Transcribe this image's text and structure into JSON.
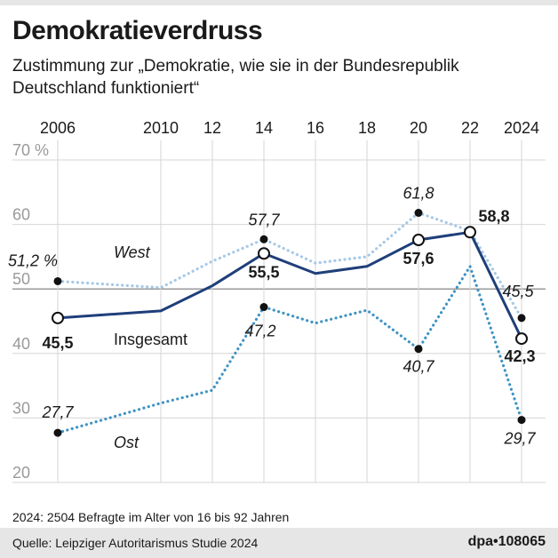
{
  "header": {
    "title": "Demokratieverdruss",
    "subtitle": "Zustimmung zur „Demokratie, wie sie in der Bundesrepublik Deutschland funktioniert“"
  },
  "chart_data": {
    "type": "line",
    "title": "Demokratieverdruss",
    "subtitle": "Zustimmung zur „Demokratie, wie sie in der Bundesrepublik Deutschland funktioniert“",
    "x": [
      2006,
      2010,
      2012,
      2014,
      2016,
      2018,
      2020,
      2022,
      2024
    ],
    "x_tick_labels": [
      "2006",
      "2010",
      "12",
      "14",
      "16",
      "18",
      "20",
      "22",
      "2024"
    ],
    "y_tick_labels": [
      "70 %",
      "60",
      "50",
      "40",
      "30",
      "20"
    ],
    "ylim": [
      20,
      70
    ],
    "y_ticks": [
      70,
      60,
      50,
      40,
      30,
      20
    ],
    "grid": true,
    "series": [
      {
        "name": "West",
        "style": "dotted",
        "color": "#a6c8e6",
        "values": [
          51.2,
          50.2,
          54.3,
          57.7,
          54.0,
          55.0,
          61.8,
          59.0,
          45.5
        ],
        "labels": [
          "51,2 %",
          null,
          null,
          "57,7",
          null,
          null,
          "61,8",
          null,
          "45,5"
        ]
      },
      {
        "name": "Insgesamt",
        "style": "solid",
        "color": "#1f3f7a",
        "values": [
          45.5,
          46.6,
          50.5,
          55.5,
          52.4,
          53.5,
          57.6,
          58.8,
          42.3
        ],
        "labels": [
          "45,5",
          null,
          null,
          "55,5",
          null,
          null,
          "57,6",
          "58,8",
          "42,3"
        ]
      },
      {
        "name": "Ost",
        "style": "dotted",
        "color": "#3e93c4",
        "values": [
          27.7,
          32.3,
          34.3,
          47.2,
          44.7,
          46.7,
          40.7,
          53.5,
          29.7
        ],
        "labels": [
          "27,7",
          null,
          null,
          "47,2",
          null,
          null,
          "40,7",
          null,
          "29,7"
        ]
      }
    ],
    "series_labels": {
      "west": "West",
      "total": "Insgesamt",
      "east": "Ost"
    }
  },
  "note": "2024: 2504 Befragte im Alter von 16 bis 92 Jahren",
  "footer": {
    "source": "Quelle: Leipziger Autoritarismus Studie 2024",
    "credit": "dpa•108065"
  }
}
